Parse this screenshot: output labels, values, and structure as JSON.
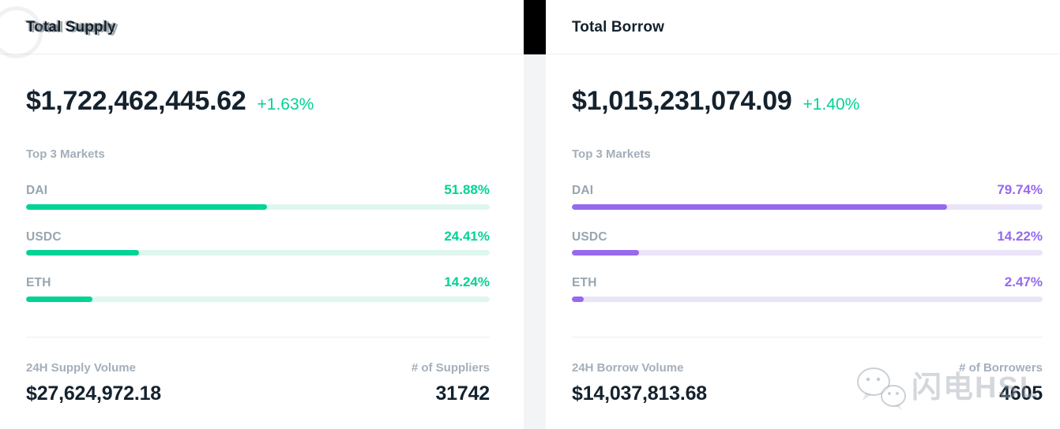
{
  "theme": {
    "green": "#00D395",
    "green_track": "#DFF7EE",
    "purple": "#9669ED",
    "purple_track": "#EAE4F9",
    "dark": "#14222E",
    "gray_label": "#A4AFBA",
    "gray_name": "#97A5B0",
    "divider": "#EDF0F2"
  },
  "panels": [
    {
      "title": "Total Supply",
      "total": "$1,722,462,445.62",
      "change": "+1.63%",
      "markets_heading": "Top 3 Markets",
      "markets": [
        {
          "name": "DAI",
          "pct_label": "51.88%",
          "pct": 51.88
        },
        {
          "name": "USDC",
          "pct_label": "24.41%",
          "pct": 24.41
        },
        {
          "name": "ETH",
          "pct_label": "14.24%",
          "pct": 14.24
        }
      ],
      "volume_label": "24H Supply Volume",
      "volume_value": "$27,624,972.18",
      "count_label": "# of Suppliers",
      "count_value": "31742"
    },
    {
      "title": "Total Borrow",
      "total": "$1,015,231,074.09",
      "change": "+1.40%",
      "markets_heading": "Top 3 Markets",
      "markets": [
        {
          "name": "DAI",
          "pct_label": "79.74%",
          "pct": 79.74
        },
        {
          "name": "USDC",
          "pct_label": "14.22%",
          "pct": 14.22
        },
        {
          "name": "ETH",
          "pct_label": "2.47%",
          "pct": 2.47
        }
      ],
      "volume_label": "24H Borrow Volume",
      "volume_value": "$14,037,813.68",
      "count_label": "# of Borrowers",
      "count_value": "4605"
    }
  ],
  "watermark": {
    "text": "闪电HSL"
  }
}
